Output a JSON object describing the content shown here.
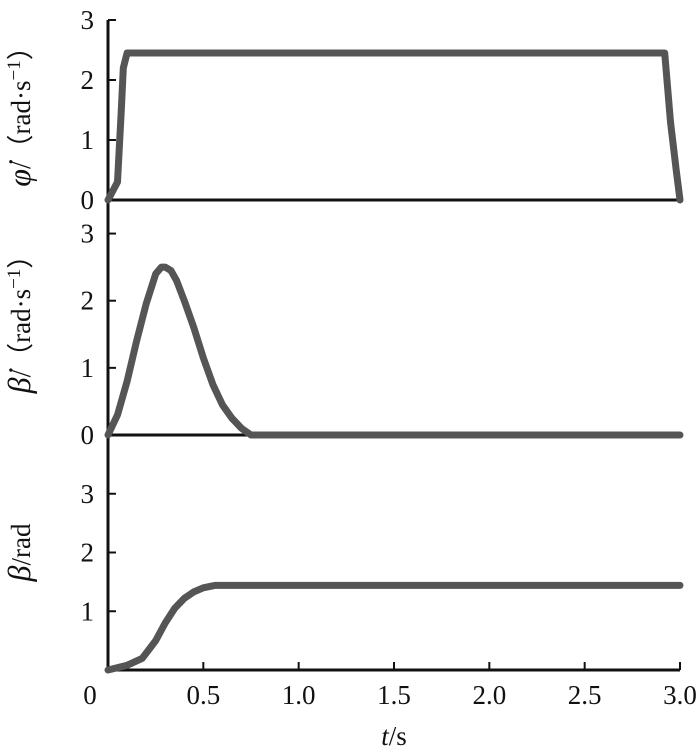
{
  "chart_data": {
    "type": "line",
    "shared_xaxis": {
      "label_var": "t",
      "label_unit": "/s",
      "xlim": [
        0,
        3.0
      ],
      "ticks": [
        "0",
        "0.5",
        "1.0",
        "1.5",
        "2.0",
        "2.5",
        "3.0"
      ]
    },
    "line_color": "#555555",
    "panels": [
      {
        "id": "phi-dot",
        "ylabel_symbol": "φ̇",
        "ylabel_unit": "/（rad·s",
        "ylabel_exp": "−1",
        "ylabel_close": "）",
        "ylim": [
          0,
          3
        ],
        "yticks": [
          "0",
          "1",
          "2",
          "3"
        ],
        "series": [
          {
            "x": [
              0.0,
              0.05,
              0.07,
              0.08,
              0.1,
              2.92,
              2.95,
              2.98,
              3.0
            ],
            "y": [
              0.0,
              0.3,
              1.5,
              2.2,
              2.45,
              2.45,
              1.3,
              0.5,
              0.0
            ]
          }
        ]
      },
      {
        "id": "beta-dot",
        "ylabel_symbol": "β̇",
        "ylabel_unit": "/（rad·s",
        "ylabel_exp": "−1",
        "ylabel_close": "）",
        "ylim": [
          0,
          3.5
        ],
        "yticks": [
          "0",
          "1",
          "2",
          "3"
        ],
        "series": [
          {
            "x": [
              0.0,
              0.05,
              0.1,
              0.15,
              0.2,
              0.25,
              0.28,
              0.3,
              0.33,
              0.36,
              0.4,
              0.45,
              0.5,
              0.55,
              0.6,
              0.65,
              0.7,
              0.75,
              1.0,
              2.0,
              3.0
            ],
            "y": [
              0.0,
              0.3,
              0.8,
              1.4,
              1.95,
              2.4,
              2.5,
              2.5,
              2.45,
              2.3,
              2.0,
              1.6,
              1.15,
              0.75,
              0.45,
              0.25,
              0.1,
              0.0,
              0.0,
              0.0,
              0.0
            ]
          }
        ]
      },
      {
        "id": "beta",
        "ylabel_symbol": "β",
        "ylabel_unit": "/rad",
        "ylim": [
          0,
          4
        ],
        "yticks": [
          "1",
          "2",
          "3"
        ],
        "series": [
          {
            "x": [
              0.0,
              0.1,
              0.18,
              0.25,
              0.3,
              0.35,
              0.4,
              0.45,
              0.5,
              0.56,
              1.0,
              2.0,
              3.0
            ],
            "y": [
              0.0,
              0.08,
              0.2,
              0.5,
              0.8,
              1.05,
              1.22,
              1.33,
              1.4,
              1.44,
              1.44,
              1.44,
              1.44
            ]
          }
        ]
      }
    ]
  }
}
